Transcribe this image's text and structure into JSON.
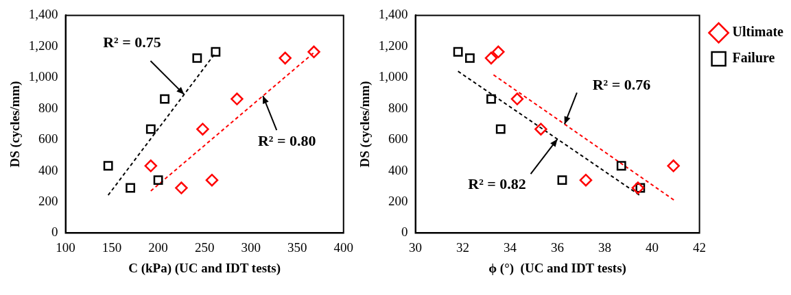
{
  "chart_data": [
    {
      "type": "scatter",
      "xlabel": "C (kPa) (UC and IDT tests)",
      "ylabel": "DS (cycles/mm)",
      "xlim": [
        100,
        400
      ],
      "xticks": [
        100,
        150,
        200,
        250,
        300,
        350,
        400
      ],
      "ylim": [
        0,
        1400
      ],
      "yticks": [
        0,
        200,
        400,
        600,
        800,
        {
          "value": 1000,
          "label": "1,000"
        },
        {
          "value": 1200,
          "label": "1,200"
        },
        {
          "value": 1400,
          "label": "1,400"
        }
      ],
      "grid": false,
      "legend": false,
      "series": [
        {
          "color": "#ff0000",
          "marker": "diamond",
          "x": [
            192,
            225,
            248,
            258,
            285,
            337,
            368
          ],
          "values": [
            432,
            290,
            668,
            340,
            862,
            1125,
            1165
          ]
        },
        {
          "color": "#000000",
          "marker": "square",
          "x": [
            146,
            170,
            192,
            200,
            207,
            242,
            262
          ],
          "values": [
            432,
            290,
            668,
            340,
            862,
            1125,
            1165
          ]
        },
        {
          "type": "line",
          "color": "#000000",
          "marker": "none",
          "line_style": "dashed",
          "x": [
            146,
            261
          ],
          "values": [
            243,
            1152
          ]
        },
        {
          "type": "line",
          "color": "#ff0000",
          "marker": "none",
          "line_style": "dashed",
          "x": [
            192,
            368
          ],
          "values": [
            270,
            1160
          ]
        }
      ],
      "annotations": [
        {
          "text": "R² = 0.75",
          "x": 228,
          "y": 891
        },
        {
          "text": "R² = 0.80",
          "x": 313,
          "y": 882
        }
      ]
    },
    {
      "type": "scatter",
      "xlabel": "ϕ (°)  (UC and IDT tests)",
      "ylabel": "DS (cycles/mm)",
      "xlim": [
        30,
        42
      ],
      "xticks": [
        30,
        32,
        34,
        36,
        38,
        40,
        42
      ],
      "ylim": [
        0,
        1400
      ],
      "yticks": [
        0,
        200,
        400,
        600,
        800,
        {
          "value": 1000,
          "label": "1,000"
        },
        {
          "value": 1200,
          "label": "1,200"
        },
        {
          "value": 1400,
          "label": "1,400"
        }
      ],
      "grid": false,
      "legend": "right",
      "series": [
        {
          "name": "Ultimate",
          "color": "#ff0000",
          "marker": "diamond",
          "x": [
            33.2,
            33.5,
            34.3,
            35.3,
            37.2,
            40.9,
            39.4
          ],
          "values": [
            1125,
            1165,
            862,
            668,
            340,
            432,
            290
          ]
        },
        {
          "name": "Failure",
          "color": "#000000",
          "marker": "square",
          "x": [
            31.8,
            32.3,
            33.2,
            33.6,
            36.2,
            38.7,
            39.5
          ],
          "values": [
            1165,
            1125,
            862,
            668,
            340,
            432,
            290
          ]
        },
        {
          "type": "line",
          "color": "#000000",
          "marker": "none",
          "line_style": "dashed",
          "x": [
            31.8,
            39.5
          ],
          "values": [
            1040,
            240
          ]
        },
        {
          "type": "line",
          "color": "#ff0000",
          "marker": "none",
          "line_style": "dashed",
          "x": [
            33.3,
            40.95
          ],
          "values": [
            1017,
            209
          ]
        }
      ],
      "annotations": [
        {
          "text": "R² = 0.76",
          "x": 36.3,
          "y": 700
        },
        {
          "text": "R² = 0.82",
          "x": 36.0,
          "y": 604
        }
      ]
    }
  ]
}
